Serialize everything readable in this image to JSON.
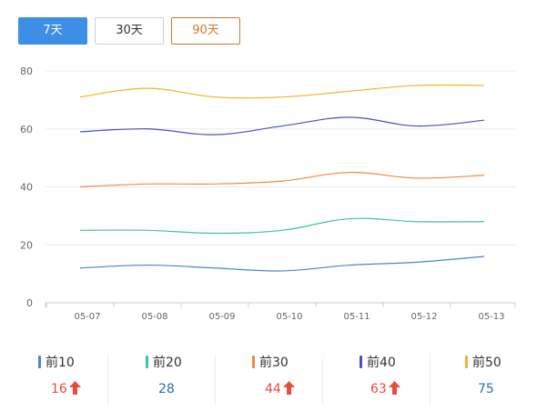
{
  "range_tabs": [
    {
      "label": "7天",
      "state": "active"
    },
    {
      "label": "30天",
      "state": "normal"
    },
    {
      "label": "90天",
      "state": "accent"
    }
  ],
  "chart_data": {
    "type": "line",
    "categories": [
      "05-07",
      "05-08",
      "05-09",
      "05-10",
      "05-11",
      "05-12",
      "05-13"
    ],
    "yticks": [
      0,
      20,
      40,
      60,
      80
    ],
    "ylim": [
      0,
      80
    ],
    "grid": true,
    "series": [
      {
        "color": "#4a86c8",
        "values": [
          12,
          13,
          12,
          11,
          13,
          14,
          16
        ]
      },
      {
        "color": "#3fc4a5",
        "values": [
          25,
          25,
          24,
          25,
          29,
          28,
          28
        ]
      },
      {
        "color": "#f08c3d",
        "values": [
          40,
          41,
          41,
          42,
          45,
          43,
          44
        ]
      },
      {
        "color": "#4a4fc4",
        "values": [
          59,
          60,
          58,
          61,
          64,
          61,
          63
        ]
      },
      {
        "color": "#f0b528",
        "values": [
          71,
          74,
          71,
          71,
          73,
          75,
          75
        ]
      }
    ]
  },
  "summary": [
    {
      "label": "前10",
      "value": "16",
      "trend": "up",
      "color": "#4a86c8"
    },
    {
      "label": "前20",
      "value": "28",
      "trend": "flat",
      "color": "#3fc4a5"
    },
    {
      "label": "前30",
      "value": "44",
      "trend": "up",
      "color": "#f08c3d"
    },
    {
      "label": "前40",
      "value": "63",
      "trend": "up",
      "color": "#4a4fc4"
    },
    {
      "label": "前50",
      "value": "75",
      "trend": "flat",
      "color": "#f0b528"
    }
  ]
}
